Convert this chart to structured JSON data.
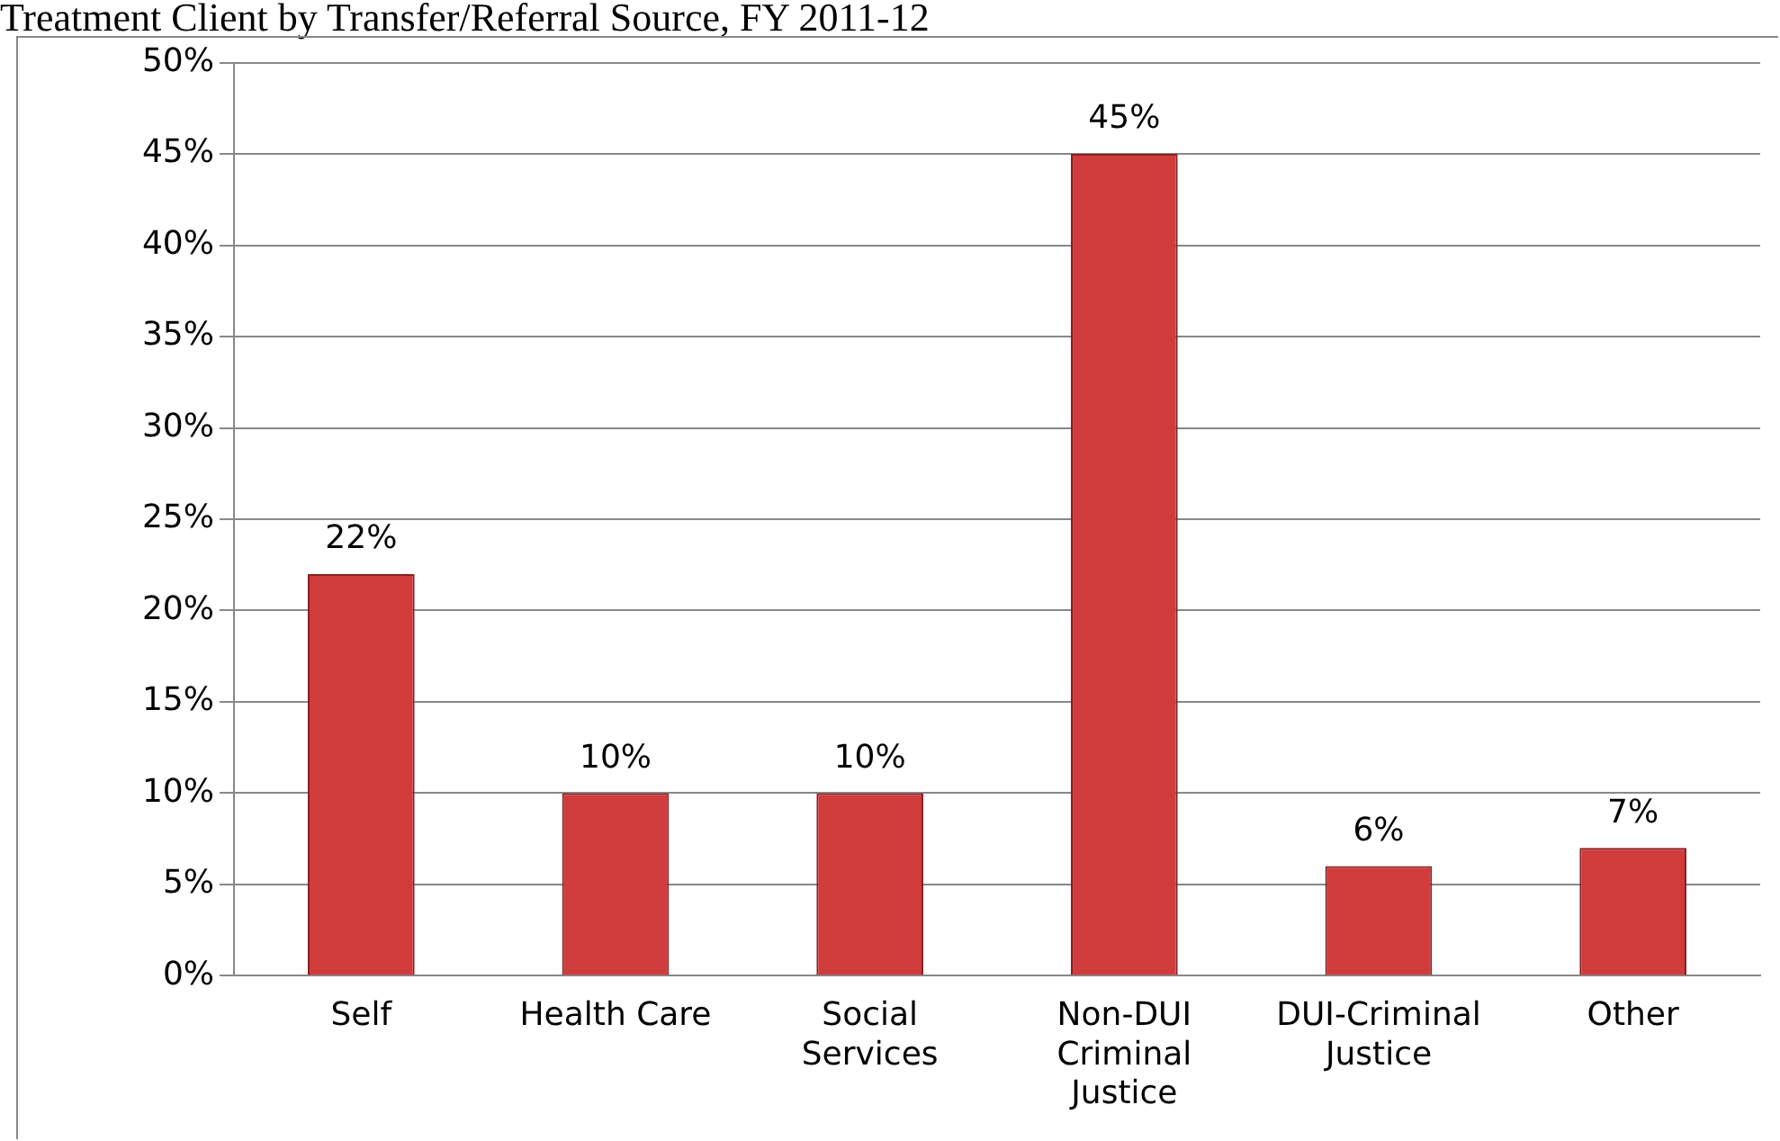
{
  "chart_data": {
    "type": "bar",
    "title": "Treatment Client by Transfer/Referral Source, FY 2011-12",
    "categories": [
      "Self",
      "Health Care",
      "Social\nServices",
      "Non-DUI\nCriminal\nJustice",
      "DUI-Criminal\nJustice",
      "Other"
    ],
    "values": [
      22,
      10,
      10,
      45,
      6,
      7
    ],
    "color": "#d03c3c",
    "value_labels": [
      "22%",
      "10%",
      "10%",
      "45%",
      "6%",
      "7%"
    ],
    "ylim": [
      0,
      50
    ],
    "yticks": [
      {
        "value": 0,
        "label": "0%"
      },
      {
        "value": 5,
        "label": "5%"
      },
      {
        "value": 10,
        "label": "10%"
      },
      {
        "value": 15,
        "label": "15%"
      },
      {
        "value": 20,
        "label": "20%"
      },
      {
        "value": 25,
        "label": "25%"
      },
      {
        "value": 30,
        "label": "30%"
      },
      {
        "value": 35,
        "label": "35%"
      },
      {
        "value": 40,
        "label": "40%"
      },
      {
        "value": 45,
        "label": "45%"
      },
      {
        "value": 50,
        "label": "50%"
      }
    ],
    "grid": "y",
    "legend": false
  }
}
